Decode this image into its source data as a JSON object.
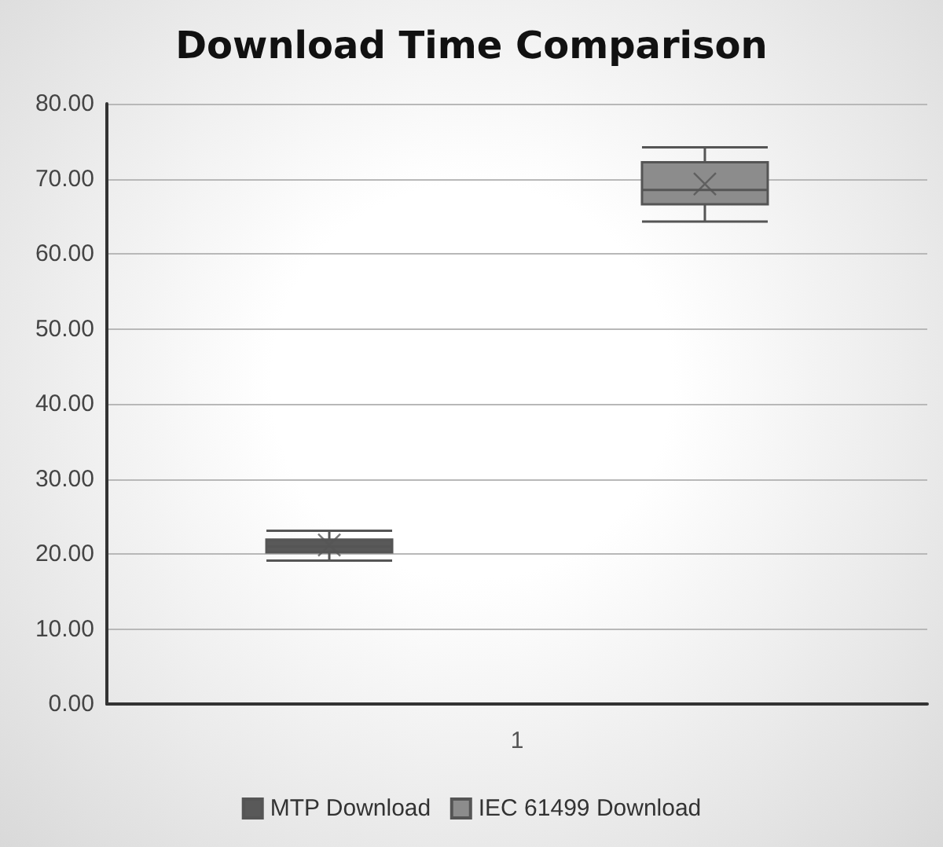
{
  "chart_data": {
    "type": "box",
    "title": "Download Time Comparison",
    "categories": [
      "1"
    ],
    "series": [
      {
        "name": "MTP Download",
        "color": "#595959",
        "boxes": [
          {
            "low": 19.1,
            "q1": 20.2,
            "median": 21.0,
            "q3": 21.9,
            "high": 23.1,
            "mean": 21.2
          }
        ]
      },
      {
        "name": "IEC 61499 Download",
        "color": "#8c8c8c",
        "boxes": [
          {
            "low": 64.3,
            "q1": 66.6,
            "median": 68.5,
            "q3": 72.2,
            "high": 74.2,
            "mean": 69.3
          }
        ]
      }
    ],
    "ylim": [
      0,
      80
    ],
    "yticks": [
      {
        "value": 0,
        "label": "0.00"
      },
      {
        "value": 10,
        "label": "10.00"
      },
      {
        "value": 20,
        "label": "20.00"
      },
      {
        "value": 30,
        "label": "30.00"
      },
      {
        "value": 40,
        "label": "40.00"
      },
      {
        "value": 50,
        "label": "50.00"
      },
      {
        "value": 60,
        "label": "60.00"
      },
      {
        "value": 70,
        "label": "70.00"
      },
      {
        "value": 80,
        "label": "80.00"
      }
    ],
    "grid": "y",
    "legend": "bottom"
  }
}
